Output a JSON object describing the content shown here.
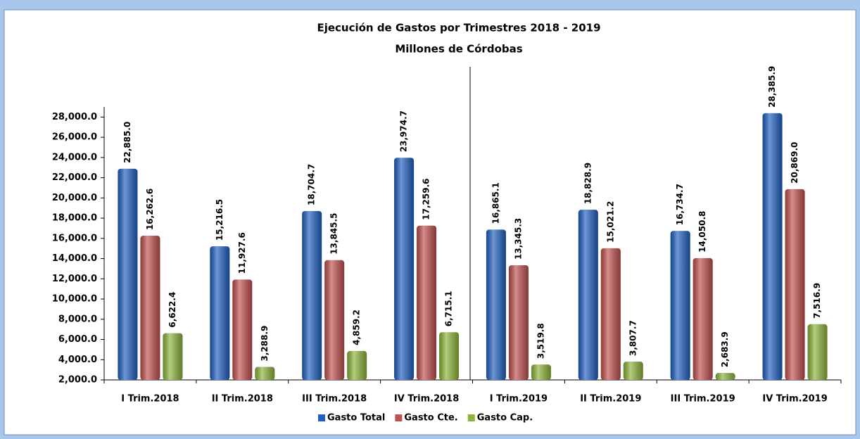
{
  "chart_data": {
    "type": "bar",
    "title": "Ejecución de  Gastos por Trimestres 2018 - 2019",
    "subtitle": "Millones de Córdobas",
    "categories": [
      "I Trim.2018",
      "II Trim.2018",
      "III Trim.2018",
      "IV Trim.2018",
      "I Trim.2019",
      "II Trim.2019",
      "III Trim.2019",
      "IV Trim.2019"
    ],
    "series": [
      {
        "name": "Gasto Total",
        "color": "#1f5fc0",
        "values": [
          22885.0,
          15216.5,
          18704.7,
          23974.7,
          16865.1,
          18828.9,
          16734.7,
          28385.9
        ],
        "value_labels": [
          "22,885.0",
          "15,216.5",
          "18,704.7",
          "23,974.7",
          "16,865.1",
          "18,828.9",
          "16,734.7",
          "28,385.9"
        ]
      },
      {
        "name": "Gasto Cte.",
        "color": "#c0504d",
        "values": [
          16262.6,
          11927.6,
          13845.5,
          17259.6,
          13345.3,
          15021.2,
          14050.8,
          20869.0
        ],
        "value_labels": [
          "16,262.6",
          "11,927.6",
          "13,845.5",
          "17,259.6",
          "13,345.3",
          "15,021.2",
          "14,050.8",
          "20,869.0"
        ]
      },
      {
        "name": "Gasto Cap.",
        "color": "#8db33a",
        "values": [
          6622.4,
          3288.9,
          4859.2,
          6715.1,
          3519.8,
          3807.7,
          2683.9,
          7516.9
        ],
        "value_labels": [
          "6,622.4",
          "3,288.9",
          "4,859.2",
          "6,715.1",
          "3,519.8",
          "3,807.7",
          "2,683.9",
          "7,516.9"
        ]
      }
    ],
    "ylim": [
      2000,
      29000
    ],
    "yticks": [
      {
        "value": 2000,
        "label": "2,000.0"
      },
      {
        "value": 4000,
        "label": "4,000.0"
      },
      {
        "value": 6000,
        "label": "6,000.0"
      },
      {
        "value": 8000,
        "label": "8,000.0"
      },
      {
        "value": 10000,
        "label": "10,000.0"
      },
      {
        "value": 12000,
        "label": "12,000.0"
      },
      {
        "value": 14000,
        "label": "14,000.0"
      },
      {
        "value": 16000,
        "label": "16,000.0"
      },
      {
        "value": 18000,
        "label": "18,000.0"
      },
      {
        "value": 20000,
        "label": "20,000.0"
      },
      {
        "value": 22000,
        "label": "22,000.0"
      },
      {
        "value": 24000,
        "label": "24,000.0"
      },
      {
        "value": 26000,
        "label": "26,000.0"
      },
      {
        "value": 28000,
        "label": "28,000.0"
      }
    ],
    "grid": false,
    "legend": "bottom"
  }
}
